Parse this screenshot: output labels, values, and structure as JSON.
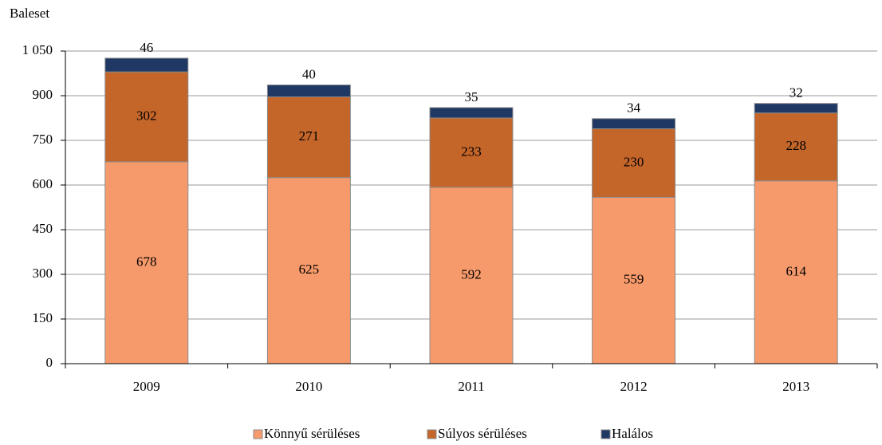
{
  "chart_data": {
    "type": "stacked_bar",
    "y_label": "Baleset",
    "categories": [
      "2009",
      "2010",
      "2011",
      "2012",
      "2013"
    ],
    "series": [
      {
        "name": "Könnyű sérüléses",
        "color": "#f79a6b",
        "values": [
          678,
          625,
          592,
          559,
          614
        ]
      },
      {
        "name": "Súlyos sérüléses",
        "color": "#c4652a",
        "values": [
          302,
          271,
          233,
          230,
          228
        ]
      },
      {
        "name": "Halálos",
        "color": "#1f3864",
        "values": [
          46,
          40,
          35,
          34,
          32
        ]
      }
    ],
    "ylim": [
      0,
      1050
    ],
    "yticks": [
      0,
      150,
      300,
      450,
      600,
      750,
      900,
      {
        "value": 1050,
        "label": "1 050"
      }
    ],
    "grid": true,
    "legend": "bottom"
  }
}
